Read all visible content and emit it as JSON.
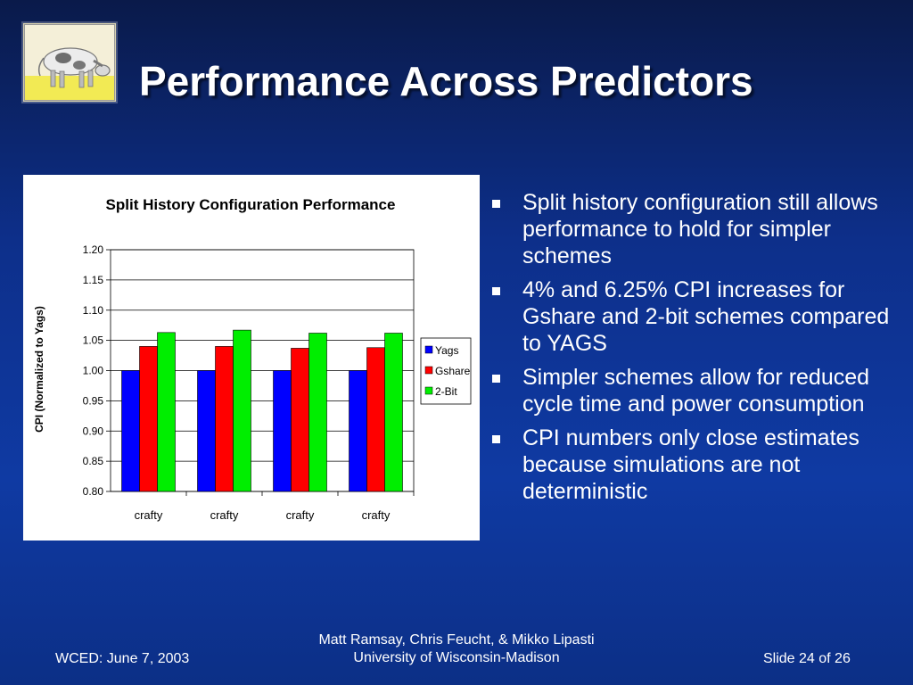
{
  "slide": {
    "title": "Performance Across Predictors",
    "bullets": [
      "Split history configuration still allows performance to hold for simpler schemes",
      "4% and 6.25% CPI increases for Gshare and 2-bit schemes compared to YAGS",
      "Simpler schemes allow for reduced cycle time and power consumption",
      "CPI numbers only close estimates because simulations are not deterministic"
    ],
    "footer": {
      "left": "WCED: June 7, 2003",
      "center_line1": "Matt Ramsay, Chris Feucht, & Mikko Lipasti",
      "center_line2": "University of Wisconsin-Madison",
      "right": "Slide 24 of 26"
    }
  },
  "chart_data": {
    "type": "bar",
    "title": "Split History Configuration Performance",
    "xlabel": "",
    "ylabel": "CPI (Normalized to Yags)",
    "categories": [
      "crafty",
      "crafty",
      "crafty",
      "crafty"
    ],
    "series": [
      {
        "name": "Yags",
        "color": "#0000ff",
        "values": [
          1.0,
          1.0,
          1.0,
          1.0
        ]
      },
      {
        "name": "Gshare",
        "color": "#ff0000",
        "values": [
          1.04,
          1.04,
          1.037,
          1.038
        ]
      },
      {
        "name": "2-Bit",
        "color": "#00ee00",
        "values": [
          1.063,
          1.067,
          1.062,
          1.062
        ]
      }
    ],
    "ylim": [
      0.8,
      1.2
    ],
    "yticks": [
      "0.80",
      "0.85",
      "0.90",
      "0.95",
      "1.00",
      "1.05",
      "1.10",
      "1.15",
      "1.20"
    ],
    "grid": true,
    "legend_position": "right"
  }
}
